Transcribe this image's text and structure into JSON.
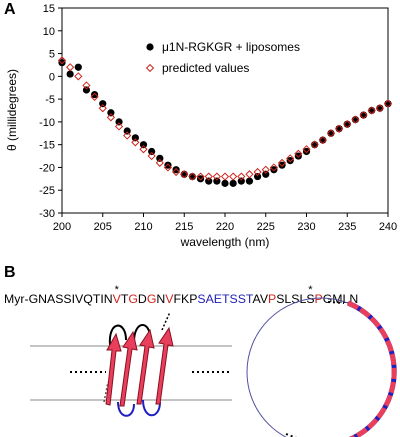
{
  "chart_data": {
    "type": "scatter",
    "panel_label": "A",
    "xlabel": "wavelength (nm)",
    "ylabel": "θ (millidegrees)",
    "xlim": [
      200,
      240
    ],
    "xticks": [
      200,
      205,
      210,
      215,
      220,
      225,
      230,
      235,
      240
    ],
    "ylim": [
      -30,
      15
    ],
    "yticks": [
      -30,
      -25,
      -20,
      -15,
      -10,
      -5,
      0,
      5,
      10,
      15
    ],
    "x": [
      200,
      201,
      202,
      203,
      204,
      205,
      206,
      207,
      208,
      209,
      210,
      211,
      212,
      213,
      214,
      215,
      216,
      217,
      218,
      219,
      220,
      221,
      222,
      223,
      224,
      225,
      226,
      227,
      228,
      229,
      230,
      231,
      232,
      233,
      234,
      235,
      236,
      237,
      238,
      239,
      240
    ],
    "series": [
      {
        "name": "μ1N-RGKGR + liposomes",
        "color": "#000000",
        "marker": "circle",
        "values": [
          3,
          0.5,
          2,
          -3,
          -4,
          -6,
          -8,
          -10,
          -12,
          -13.5,
          -15,
          -16.5,
          -18,
          -19.5,
          -20.5,
          -21.5,
          -22,
          -22.5,
          -23,
          -23,
          -23.5,
          -23.5,
          -23,
          -23,
          -22,
          -21.5,
          -20.5,
          -19.5,
          -18.5,
          -17.5,
          -16.5,
          -15,
          -14,
          -12.5,
          -11.5,
          -10.5,
          -9.5,
          -8.5,
          -7.5,
          -7,
          -6
        ]
      },
      {
        "name": "predicted values",
        "color": "#d0241c",
        "marker": "diamond",
        "values": [
          3.5,
          2,
          0,
          -2,
          -4.5,
          -7,
          -9,
          -11,
          -13,
          -14.5,
          -16,
          -17.5,
          -19,
          -20,
          -21,
          -21.5,
          -22,
          -22,
          -22,
          -22,
          -22,
          -22,
          -22,
          -21.5,
          -21,
          -20.5,
          -20,
          -19,
          -18,
          -17,
          -16,
          -15,
          -14,
          -12.5,
          -11.5,
          -10.5,
          -9.5,
          -8.5,
          -7.5,
          -7,
          -6
        ]
      }
    ]
  },
  "panel_b": {
    "label": "B",
    "sequence": [
      {
        "text": "Myr-GNASSIVQTIN",
        "color": "#000000"
      },
      {
        "text": "V",
        "color": "#d0241c",
        "note": "*"
      },
      {
        "text": "T",
        "color": "#000000"
      },
      {
        "text": "G",
        "color": "#d0241c"
      },
      {
        "text": "D",
        "color": "#000000"
      },
      {
        "text": "G",
        "color": "#d0241c"
      },
      {
        "text": "N",
        "color": "#000000"
      },
      {
        "text": "V",
        "color": "#d0241c"
      },
      {
        "text": "FKP",
        "color": "#000000"
      },
      {
        "text": "SAETSST",
        "color": "#1f1fb4"
      },
      {
        "text": "AV",
        "color": "#000000"
      },
      {
        "text": "P",
        "color": "#d0241c"
      },
      {
        "text": "SLSL",
        "color": "#000000"
      },
      {
        "text": "S",
        "color": "#000000",
        "note": "*"
      },
      {
        "text": "P",
        "color": "#d0241c"
      },
      {
        "text": "GMLN",
        "color": "#000000"
      }
    ]
  }
}
